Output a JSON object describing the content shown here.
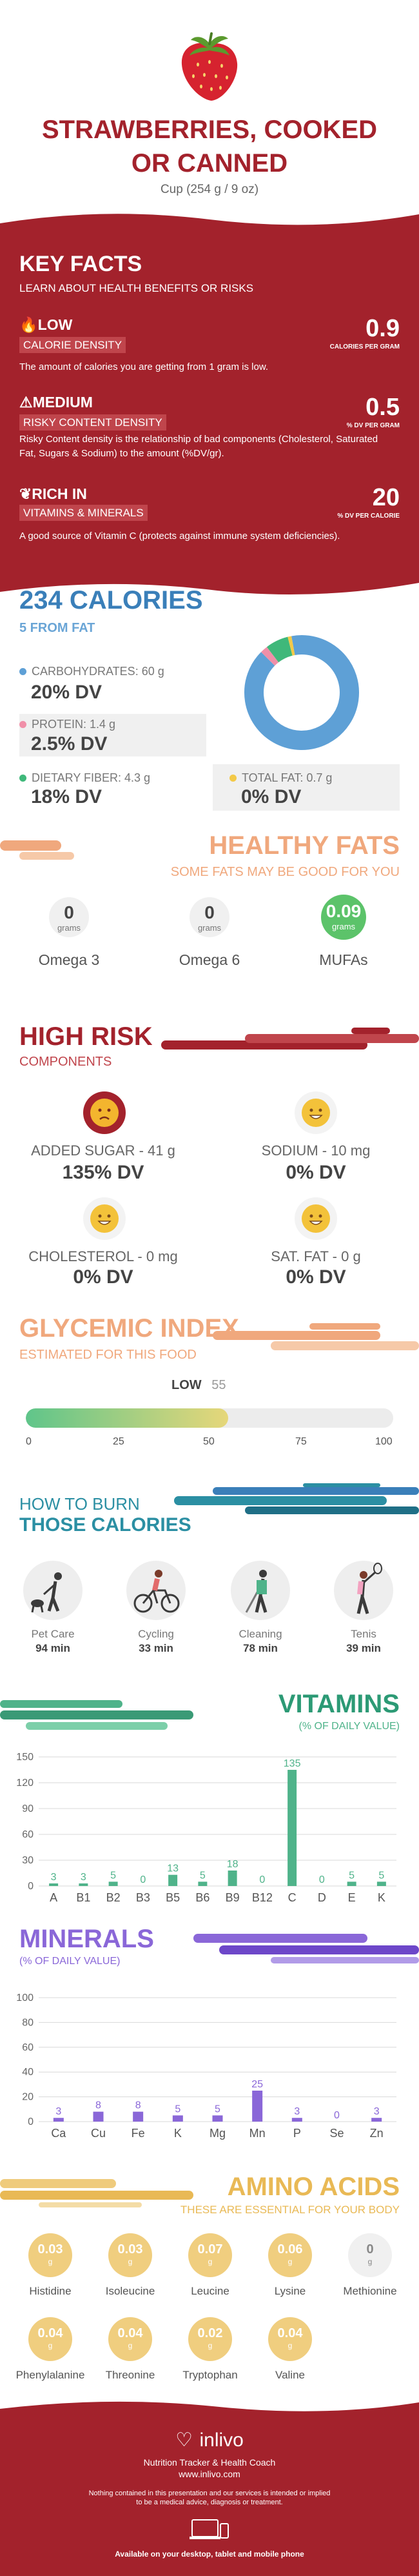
{
  "header": {
    "title_line1": "STRAWBERRIES, COOKED",
    "title_line2": "OR CANNED",
    "serving": "Cup (254 g / 9 oz)"
  },
  "key_facts": {
    "title": "KEY FACTS",
    "subtitle": "LEARN ABOUT HEALTH BENEFITS OR RISKS",
    "items": [
      {
        "level": "LOW",
        "label": "CALORIE DENSITY",
        "desc": "The amount of calories you are getting from 1 gram is low.",
        "value": "0.9",
        "caption": "CALORIES PER GRAM"
      },
      {
        "level": "MEDIUM",
        "label": "RISKY CONTENT DENSITY",
        "desc": "Risky Content density is the relationship of bad components (Cholesterol, Saturated Fat, Sugars & Sodium) to the amount (%DV/gr).",
        "value": "0.5",
        "caption": "% DV PER GRAM"
      },
      {
        "level": "RICH  IN",
        "label": "VITAMINS & MINERALS",
        "desc": "A good source of Vitamin C (protects against immune system deficiencies).",
        "value": "20",
        "caption": "% DV PER CALORIE"
      }
    ]
  },
  "calories": {
    "title": "234 CALORIES",
    "from_fat": "5 FROM FAT",
    "nutrients": [
      {
        "label": "CARBOHYDRATES: 60 g",
        "value": "20% DV",
        "color": "#5ea0d6"
      },
      {
        "label": "PROTEIN: 1.4 g",
        "value": "2.5% DV",
        "color": "#f08fa8"
      },
      {
        "label": "DIETARY FIBER: 4.3 g",
        "value": "18% DV",
        "color": "#3fb87a"
      },
      {
        "label": "TOTAL FAT: 0.7 g",
        "value": "0% DV",
        "color": "#f3c948"
      }
    ]
  },
  "healthy_fats": {
    "title": "HEALTHY FATS",
    "subtitle": "SOME FATS MAY BE GOOD FOR YOU",
    "items": [
      {
        "value": "0",
        "unit": "grams",
        "name": "Omega 3"
      },
      {
        "value": "0",
        "unit": "grams",
        "name": "Omega 6"
      },
      {
        "value": "0.09",
        "unit": "grams",
        "name": "MUFAs"
      }
    ]
  },
  "high_risk": {
    "title": "HIGH RISK",
    "subtitle": "COMPONENTS",
    "items": [
      {
        "label": "ADDED SUGAR - 41 g",
        "value": "135% DV"
      },
      {
        "label": "SODIUM - 10 mg",
        "value": "0% DV"
      },
      {
        "label": "CHOLESTEROL - 0 mg",
        "value": "0% DV"
      },
      {
        "label": "SAT. FAT - 0 g",
        "value": "0% DV"
      }
    ]
  },
  "glycemic": {
    "title": "GLYCEMIC INDEX",
    "subtitle": "ESTIMATED FOR THIS FOOD",
    "level": "LOW",
    "value": "55",
    "ticks": [
      "0",
      "25",
      "50",
      "75",
      "100"
    ]
  },
  "burn": {
    "title1": "HOW TO BURN",
    "title2": "THOSE CALORIES",
    "items": [
      {
        "name": "Pet Care",
        "time": "94 min"
      },
      {
        "name": "Cycling",
        "time": "33 min"
      },
      {
        "name": "Cleaning",
        "time": "78 min"
      },
      {
        "name": "Tenis",
        "time": "39 min"
      }
    ]
  },
  "vitamins": {
    "title": "VITAMINS",
    "subtitle": "(% OF DAILY VALUE)"
  },
  "minerals": {
    "title": "MINERALS",
    "subtitle": "(% OF DAILY VALUE)"
  },
  "amino": {
    "title": "AMINO ACIDS",
    "subtitle": "THESE ARE ESSENTIAL FOR YOUR BODY",
    "items": [
      {
        "value": "0.03",
        "unit": "g",
        "name": "Histidine"
      },
      {
        "value": "0.03",
        "unit": "g",
        "name": "Isoleucine"
      },
      {
        "value": "0.07",
        "unit": "g",
        "name": "Leucine"
      },
      {
        "value": "0.06",
        "unit": "g",
        "name": "Lysine"
      },
      {
        "value": "0",
        "unit": "g",
        "name": "Methionine"
      },
      {
        "value": "0.04",
        "unit": "g",
        "name": "Phenylalanine"
      },
      {
        "value": "0.04",
        "unit": "g",
        "name": "Threonine"
      },
      {
        "value": "0.02",
        "unit": "g",
        "name": "Tryptophan"
      },
      {
        "value": "0.04",
        "unit": "g",
        "name": "Valine"
      }
    ]
  },
  "footer": {
    "brand": "inlivo",
    "tagline": "Nutrition Tracker & Health Coach",
    "url": "www.inlivo.com",
    "disclaimer1": "Nothing contained in this presentation and our services is intended or implied",
    "disclaimer2": "to be a medical advice, diagnosis or treatment.",
    "available": "Available on your desktop, tablet and mobile phone"
  },
  "chart_data": [
    {
      "type": "pie",
      "title": "",
      "categories": [
        "Carbohydrates",
        "Protein",
        "Dietary Fiber",
        "Total Fat"
      ],
      "values": [
        60,
        1.4,
        4.3,
        0.7
      ],
      "colors": [
        "#5ea0d6",
        "#f08fa8",
        "#3fb87a",
        "#f3c948"
      ]
    },
    {
      "type": "bar",
      "title": "VITAMINS",
      "categories": [
        "A",
        "B1",
        "B2",
        "B3",
        "B5",
        "B6",
        "B9",
        "B12",
        "C",
        "D",
        "E",
        "K"
      ],
      "values": [
        3,
        3,
        5,
        0,
        13,
        5,
        18,
        0,
        135,
        0,
        5,
        5
      ],
      "ylim": [
        0,
        150
      ],
      "yticks": [
        0,
        30,
        60,
        90,
        120,
        150
      ],
      "color": "#4fb38a",
      "grid": true
    },
    {
      "type": "bar",
      "title": "MINERALS",
      "categories": [
        "Ca",
        "Cu",
        "Fe",
        "K",
        "Mg",
        "Mn",
        "P",
        "Se",
        "Zn"
      ],
      "values": [
        3,
        8,
        8,
        5,
        5,
        25,
        3,
        0,
        3
      ],
      "ylim": [
        0,
        100
      ],
      "yticks": [
        0,
        20,
        40,
        60,
        80,
        100
      ],
      "color": "#8a67d8",
      "grid": true
    }
  ]
}
